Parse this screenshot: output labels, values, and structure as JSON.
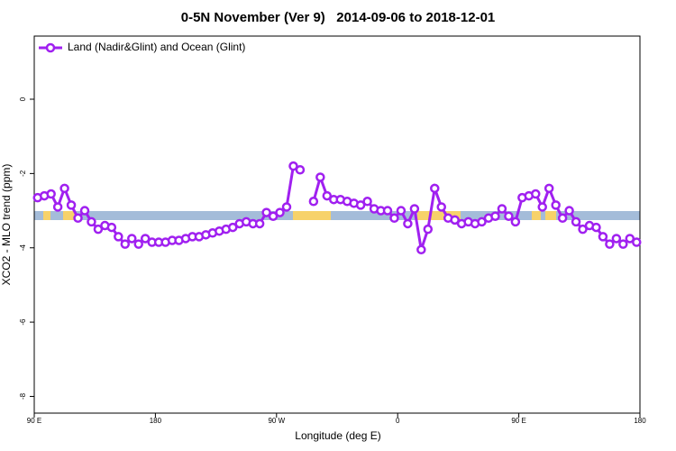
{
  "chart_data": {
    "type": "line",
    "title": "0-5N November (Ver 9)   2014-09-06 to 2018-12-01",
    "x_label": "Longitude (deg E)",
    "y_label": "XCO2 - MLO trend (ppm)",
    "xlim": [
      90,
      540
    ],
    "ylim": [
      -8.45,
      1.7
    ],
    "xticks": [
      {
        "value": 90,
        "label": "90 E"
      },
      180,
      {
        "value": 270,
        "label": "90 W"
      },
      {
        "value": 360,
        "label": "0"
      },
      {
        "value": 450,
        "label": "90 E"
      },
      {
        "value": 540,
        "label": "180"
      }
    ],
    "yticks": [
      0,
      -2,
      -4,
      -6,
      -8
    ],
    "legend": "top-left",
    "x": [
      92.5,
      97.5,
      102.5,
      107.5,
      112.5,
      117.5,
      122.5,
      127.5,
      132.5,
      137.5,
      142.5,
      147.5,
      152.5,
      157.5,
      162.5,
      167.5,
      172.5,
      177.5,
      182.5,
      187.5,
      192.5,
      197.5,
      202.5,
      207.5,
      212.5,
      217.5,
      222.5,
      227.5,
      232.5,
      237.5,
      242.5,
      247.5,
      252.5,
      257.5,
      262.5,
      267.5,
      272.5,
      277.5,
      282.5,
      287.5,
      292.5,
      297.5,
      302.5,
      307.5,
      312.5,
      317.5,
      322.5,
      327.5,
      332.5,
      337.5,
      342.5,
      347.5,
      352.5,
      357.5,
      362.5,
      367.5,
      372.5,
      377.5,
      382.5,
      387.5,
      392.5,
      397.5,
      402.5,
      407.5,
      412.5,
      417.5,
      422.5,
      427.5,
      432.5,
      437.5,
      442.5,
      447.5,
      452.5,
      457.5,
      462.5,
      467.5,
      472.5,
      477.5,
      482.5,
      487.5,
      492.5,
      497.5,
      502.5,
      507.5,
      512.5,
      517.5,
      522.5,
      527.5,
      532.5,
      537.5
    ],
    "series": [
      {
        "name": "Land (Nadir&Glint) and Ocean (Glint)",
        "color": "#a020f0",
        "values": [
          -2.65,
          -2.6,
          -2.55,
          -2.9,
          -2.4,
          -2.85,
          -3.2,
          -3.0,
          -3.3,
          -3.5,
          -3.4,
          -3.45,
          -3.7,
          -3.9,
          -3.75,
          -3.9,
          -3.75,
          -3.85,
          -3.85,
          -3.85,
          -3.8,
          -3.8,
          -3.75,
          -3.7,
          -3.7,
          -3.65,
          -3.6,
          -3.55,
          -3.5,
          -3.45,
          -3.35,
          -3.3,
          -3.35,
          -3.35,
          -3.05,
          -3.15,
          -3.05,
          -2.9,
          -1.8,
          -1.9,
          null,
          -2.75,
          -2.1,
          -2.6,
          -2.7,
          -2.7,
          -2.75,
          -2.8,
          -2.85,
          -2.75,
          -2.95,
          -3.0,
          -3.0,
          -3.2,
          -3.0,
          -3.35,
          -2.95,
          -4.05,
          -3.5,
          -2.4,
          -2.9,
          -3.2,
          -3.25,
          -3.35,
          -3.3,
          -3.35,
          -3.3,
          -3.2,
          -3.15,
          -2.95,
          -3.15,
          -3.3,
          -2.65,
          -2.6,
          -2.55,
          -2.9,
          -2.4,
          -2.85,
          -3.2,
          -3.0,
          -3.3,
          -3.5,
          -3.4,
          -3.45,
          -3.7,
          -3.9,
          -3.75,
          -3.9,
          -3.75,
          -3.85
        ]
      }
    ]
  }
}
